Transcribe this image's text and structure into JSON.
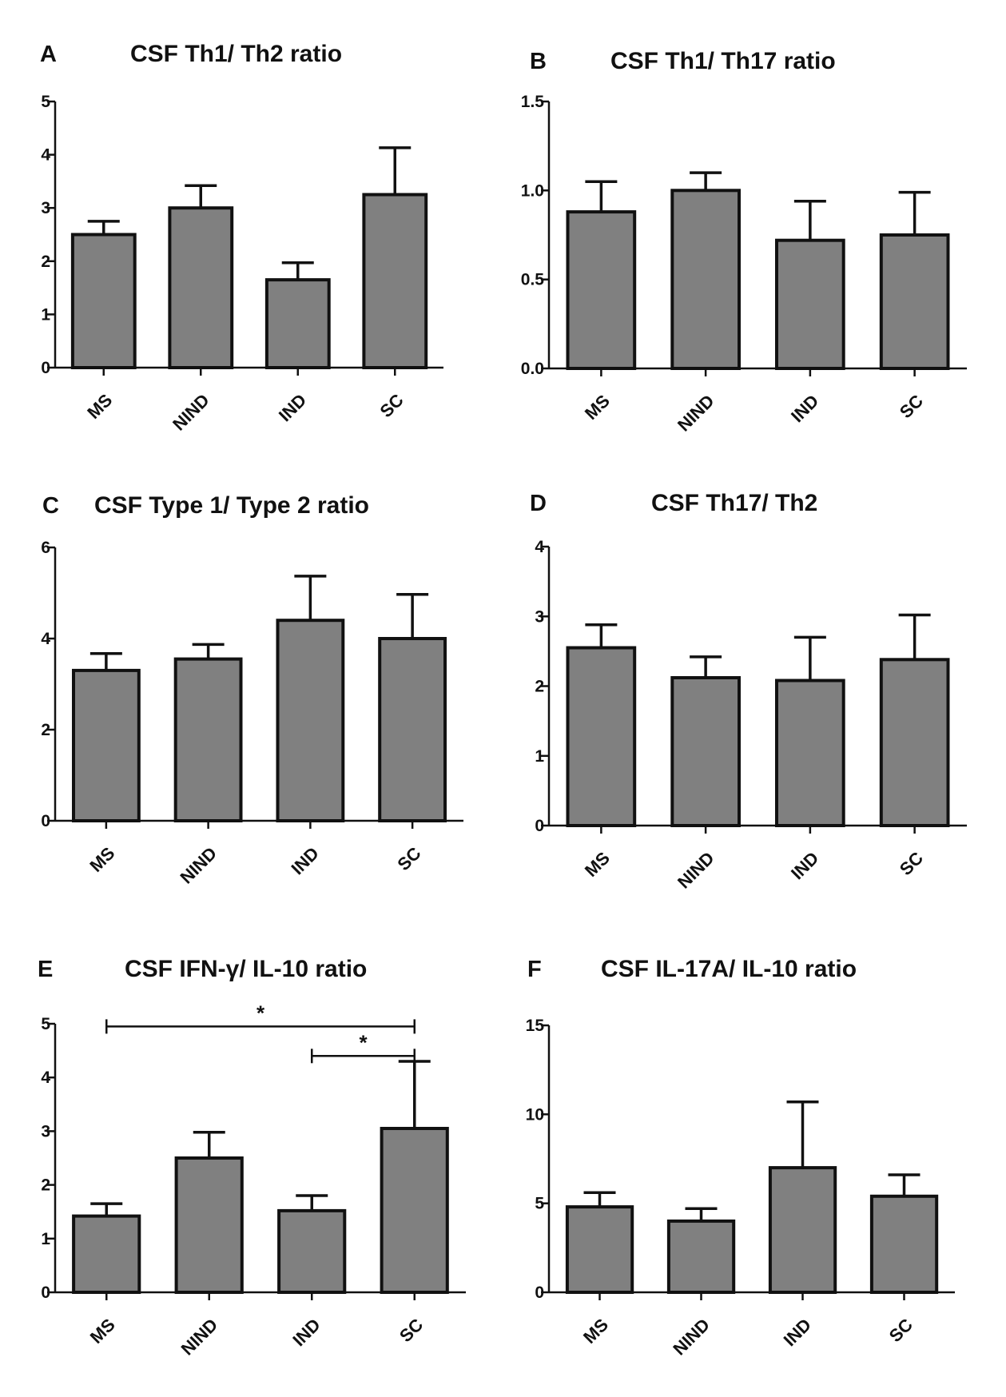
{
  "figure": {
    "colors": {
      "bar_fill": "#808080",
      "stroke": "#111111"
    }
  },
  "chart_data": [
    {
      "type": "bar",
      "panel": "A",
      "title": "CSF Th1/ Th2 ratio",
      "categories": [
        "MS",
        "NIND",
        "IND",
        "SC"
      ],
      "values": [
        2.5,
        3.0,
        1.65,
        3.25
      ],
      "error_upper": [
        0.25,
        0.42,
        0.32,
        0.88
      ],
      "ylim": [
        0,
        5
      ],
      "yticks": [
        "0",
        "1",
        "2",
        "3",
        "4",
        "5"
      ],
      "ytick_values": [
        0,
        1,
        2,
        3,
        4,
        5
      ],
      "significance": []
    },
    {
      "type": "bar",
      "panel": "B",
      "title": "CSF Th1/ Th17 ratio",
      "categories": [
        "MS",
        "NIND",
        "IND",
        "SC"
      ],
      "values": [
        0.88,
        1.0,
        0.72,
        0.75
      ],
      "error_upper": [
        0.17,
        0.1,
        0.22,
        0.24
      ],
      "ylim": [
        0,
        1.5
      ],
      "yticks": [
        "0.0",
        "0.5",
        "1.0",
        "1.5"
      ],
      "ytick_values": [
        0,
        0.5,
        1.0,
        1.5
      ],
      "significance": []
    },
    {
      "type": "bar",
      "panel": "C",
      "title": "CSF Type 1/ Type 2 ratio",
      "categories": [
        "MS",
        "NIND",
        "IND",
        "SC"
      ],
      "values": [
        3.3,
        3.55,
        4.4,
        4.0
      ],
      "error_upper": [
        0.37,
        0.32,
        0.97,
        0.97
      ],
      "ylim": [
        0,
        6
      ],
      "yticks": [
        "0",
        "2",
        "4",
        "6"
      ],
      "ytick_values": [
        0,
        2,
        4,
        6
      ],
      "significance": []
    },
    {
      "type": "bar",
      "panel": "D",
      "title": "CSF Th17/ Th2",
      "categories": [
        "MS",
        "NIND",
        "IND",
        "SC"
      ],
      "values": [
        2.55,
        2.12,
        2.08,
        2.38
      ],
      "error_upper": [
        0.33,
        0.3,
        0.62,
        0.64
      ],
      "ylim": [
        0,
        4
      ],
      "yticks": [
        "0",
        "1",
        "2",
        "3",
        "4"
      ],
      "ytick_values": [
        0,
        1,
        2,
        3,
        4
      ],
      "significance": []
    },
    {
      "type": "bar",
      "panel": "E",
      "title": "CSF IFN-γ/ IL-10 ratio",
      "categories": [
        "MS",
        "NIND",
        "IND",
        "SC"
      ],
      "values": [
        1.42,
        2.5,
        1.52,
        3.05
      ],
      "error_upper": [
        0.23,
        0.48,
        0.28,
        1.25
      ],
      "ylim": [
        0,
        5
      ],
      "yticks": [
        "0",
        "1",
        "2",
        "3",
        "4",
        "5"
      ],
      "ytick_values": [
        0,
        1,
        2,
        3,
        4,
        5
      ],
      "significance": [
        {
          "from": 0,
          "to": 3,
          "level": 4.95,
          "label": "*"
        },
        {
          "from": 2,
          "to": 3,
          "level": 4.4,
          "label": "*"
        }
      ]
    },
    {
      "type": "bar",
      "panel": "F",
      "title": "CSF IL-17A/ IL-10 ratio",
      "categories": [
        "MS",
        "NIND",
        "IND",
        "SC"
      ],
      "values": [
        4.8,
        4.0,
        7.0,
        5.4
      ],
      "error_upper": [
        0.8,
        0.7,
        3.7,
        1.2
      ],
      "ylim": [
        0,
        15
      ],
      "yticks": [
        "0",
        "5",
        "10",
        "15"
      ],
      "ytick_values": [
        0,
        5,
        10,
        15
      ],
      "significance": []
    }
  ]
}
